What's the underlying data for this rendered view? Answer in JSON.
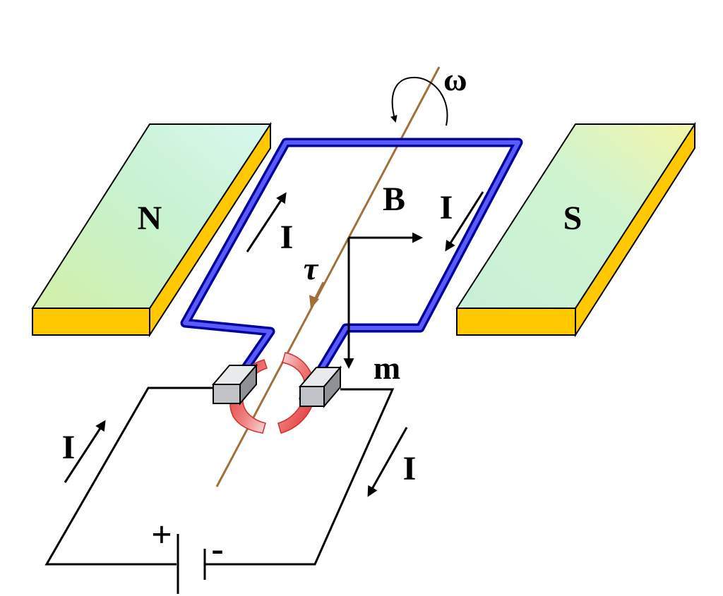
{
  "labels": {
    "magnet_north": "N",
    "magnet_south": "S",
    "angular_velocity": "ω",
    "field": "B",
    "torque": "τ",
    "moment": "m",
    "current": "I",
    "battery_plus": "+",
    "battery_minus": "-"
  },
  "colors": {
    "magnet_face_light": "#d2f7e6",
    "magnet_face_mid": "#c6f2c6",
    "magnet_face_dark": "#f5f5b0",
    "magnet_side": "#ffc800",
    "loop_outer": "#0000cc",
    "loop_inner": "#6e6eff",
    "axle": "#a0703c",
    "commutator": "#e84040",
    "brush": "#b4b8bc"
  }
}
